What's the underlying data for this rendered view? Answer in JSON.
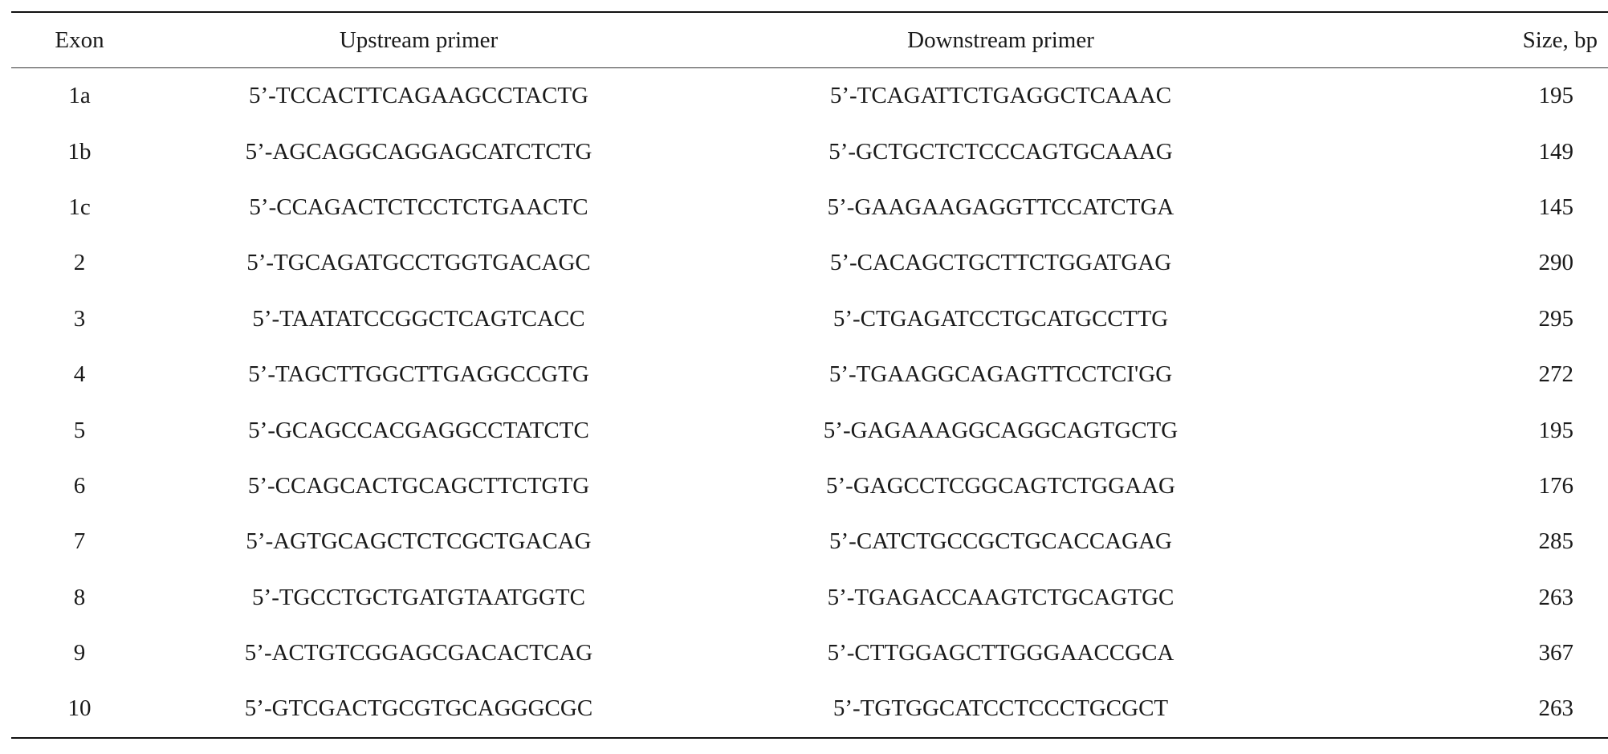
{
  "table": {
    "headers": {
      "exon": "Exon",
      "upstream": "Upstream primer",
      "downstream": "Downstream primer",
      "size": "Size, bp"
    },
    "rows": [
      {
        "exon": "1a",
        "upstream": "5’-TCCACTTCAGAAGCCTACTG",
        "downstream": "5’-TCAGATTCTGAGGCTCAAAC",
        "size": "195"
      },
      {
        "exon": "1b",
        "upstream": "5’-AGCAGGCAGGAGCATCTCTG",
        "downstream": "5’-GCTGCTCTCCCAGTGCAAAG",
        "size": "149"
      },
      {
        "exon": "1c",
        "upstream": "5’-CCAGACTCTCCTCTGAACTC",
        "downstream": "5’-GAAGAAGAGGTTCCATCTGA",
        "size": "145"
      },
      {
        "exon": "2",
        "upstream": "5’-TGCAGATGCCTGGTGACAGC",
        "downstream": "5’-CACAGCTGCTTCTGGATGAG",
        "size": "290"
      },
      {
        "exon": "3",
        "upstream": "5’-TAATATCCGGCTCAGTCACC",
        "downstream": "5’-CTGAGATCCTGCATGCCTTG",
        "size": "295"
      },
      {
        "exon": "4",
        "upstream": "5’-TAGCTTGGCTTGAGGCCGTG",
        "downstream": "5’-TGAAGGCAGAGTTCCTCI'GG",
        "size": "272"
      },
      {
        "exon": "5",
        "upstream": "5’-GCAGCCACGAGGCCTATCTC",
        "downstream": "5’-GAGAAAGGCAGGCAGTGCTG",
        "size": "195"
      },
      {
        "exon": "6",
        "upstream": "5’-CCAGCACTGCAGCTTCTGTG",
        "downstream": "5’-GAGCCTCGGCAGTCTGGAAG",
        "size": "176"
      },
      {
        "exon": "7",
        "upstream": "5’-AGTGCAGCTCTCGCTGACAG",
        "downstream": "5’-CATCTGCCGCTGCACCAGAG",
        "size": "285"
      },
      {
        "exon": "8",
        "upstream": "5’-TGCCTGCTGATGTAATGGTC",
        "downstream": "5’-TGAGACCAAGTCTGCAGTGC",
        "size": "263"
      },
      {
        "exon": "9",
        "upstream": "5’-ACTGTCGGAGCGACACTCAG",
        "downstream": "5’-CTTGGAGCTTGGGAACCGCA",
        "size": "367"
      },
      {
        "exon": "10",
        "upstream": "5’-GTCGACTGCGTGCAGGGCGC",
        "downstream": "5’-TGTGGCATCCTCCCTGCGCT",
        "size": "263"
      }
    ]
  }
}
